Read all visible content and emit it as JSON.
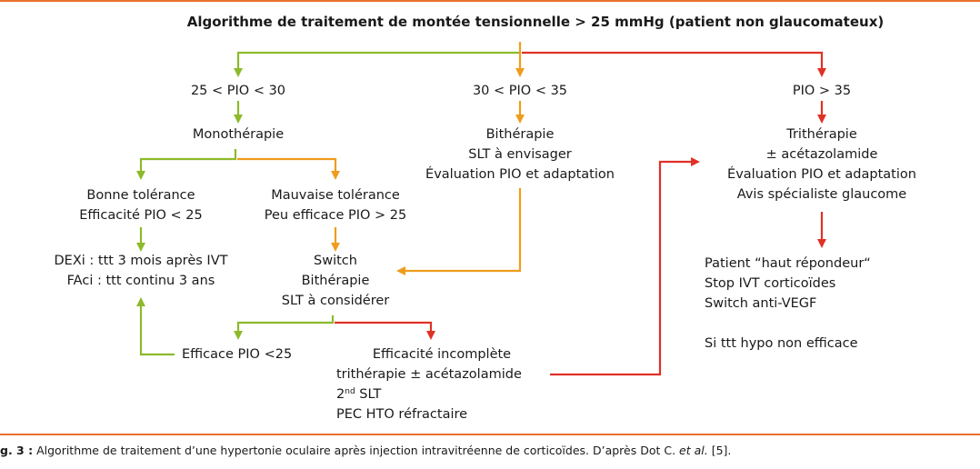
{
  "colors": {
    "rule": "#e8722b",
    "green": "#8cba2a",
    "orange": "#ef9c1c",
    "red": "#e03127"
  },
  "title": "Algorithme de traitement de montée tensionnelle > 25 mmHg (patient non glaucomateux)",
  "branches": {
    "low": "25 < PIO < 30",
    "mid": "30 < PIO < 35",
    "high": "PIO > 35"
  },
  "nodes": {
    "monotherapie": "Monothérapie",
    "bitherapie_mid": [
      "Bithérapie",
      "SLT à envisager",
      "Évaluation PIO et adaptation"
    ],
    "tritherapie": [
      "Trithérapie",
      "± acétazolamide",
      "Évaluation PIO et adaptation",
      "Avis spécialiste glaucome"
    ],
    "bonne_tolerance": [
      "Bonne tolérance",
      "Efficacité PIO < 25"
    ],
    "mauvaise_tolerance": [
      "Mauvaise tolérance",
      "Peu efficace PIO > 25"
    ],
    "dexi": [
      "DEXi : ttt 3 mois après IVT",
      "FAci : ttt continu 3 ans"
    ],
    "switch": [
      "Switch",
      "Bithérapie",
      "SLT à considérer"
    ],
    "efficace": "Efficace PIO <25",
    "incomplete": {
      "line1": "Efficacité incomplète",
      "line2": "trithérapie ± acétazolamide",
      "line3_prefix": "2",
      "line3_sup": "nd",
      "line3_suffix": " SLT",
      "line4": "PEC HTO réfractaire"
    },
    "repondeur": [
      "Patient “haut répondeur“",
      "Stop IVT corticoïdes",
      "Switch anti-VEGF",
      "",
      "Si ttt hypo non efficace"
    ]
  },
  "caption": {
    "label": "g. 3 :",
    "text": " Algorithme de traitement d’une hypertonie oculaire après injection intravitréenne de corticoïdes. D’après Dot C. ",
    "etal": "et al.",
    "ref": " [5]."
  }
}
